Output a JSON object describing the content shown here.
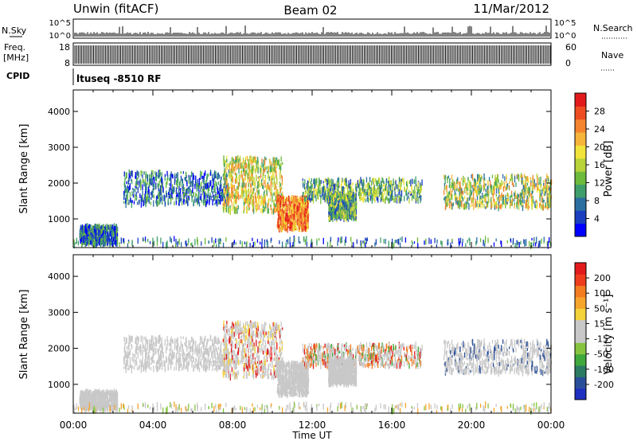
{
  "header": {
    "station": "Unwin (fitACF)",
    "beam": "Beam 02",
    "date": "11/Mar/2012"
  },
  "strips": {
    "nsky_label": "N.Sky",
    "nsky_ticks": [
      "10^5",
      "10^0"
    ],
    "nsearch_label": "N.Search",
    "nsearch_ticks": [
      "10^5",
      "10^0"
    ],
    "freq_label_1": "Freq.",
    "freq_label_2": "[MHz]",
    "freq_ticks": [
      "18",
      "8"
    ],
    "nave_label": "Nave",
    "nave_ticks": [
      "60",
      "0"
    ],
    "cpid_label": "CPID",
    "cpid_value": "ltuseq -8510 RF"
  },
  "chart_data": [
    {
      "type": "heatmap",
      "name": "power",
      "ylabel": "Slant Range [km]",
      "yticks": [
        1000,
        2000,
        3000,
        4000
      ],
      "ylim": [
        200,
        4600
      ],
      "xlim_hours": [
        0,
        24
      ],
      "colorbar": {
        "label": "Power [dB]",
        "ticks": [
          "28",
          "24",
          "20",
          "16",
          "12",
          "8",
          "4"
        ],
        "colors": [
          "#0000ff",
          "#1a3fbf",
          "#2b6fa0",
          "#3f9f6a",
          "#6dbb3c",
          "#b8d23a",
          "#f2e33a",
          "#f6b43a",
          "#f4852e",
          "#ee4d22",
          "#e31a1c"
        ]
      },
      "scatter_groups": [
        {
          "range_km": [
            300,
            800
          ],
          "hours": [
            0.3,
            2.2
          ]
        },
        {
          "range_km": [
            1400,
            2300
          ],
          "hours": [
            2.5,
            7.8
          ]
        },
        {
          "range_km": [
            1200,
            2700
          ],
          "hours": [
            7.5,
            10.5
          ]
        },
        {
          "range_km": [
            700,
            1600
          ],
          "hours": [
            10.2,
            11.8
          ]
        },
        {
          "range_km": [
            1500,
            2100
          ],
          "hours": [
            11.5,
            17.5
          ]
        },
        {
          "range_km": [
            1000,
            1700
          ],
          "hours": [
            12.8,
            14.2
          ]
        },
        {
          "range_km": [
            1300,
            2200
          ],
          "hours": [
            18.6,
            24
          ]
        },
        {
          "range_km": [
            250,
            450
          ],
          "hours": [
            0,
            24
          ]
        }
      ]
    },
    {
      "type": "heatmap",
      "name": "velocity",
      "ylabel": "Slant Range [km]",
      "yticks": [
        1000,
        2000,
        3000,
        4000
      ],
      "ylim": [
        200,
        4600
      ],
      "xlim_hours": [
        0,
        24
      ],
      "colorbar": {
        "label": "Velocity [m s⁻¹]",
        "ticks": [
          "200",
          "100",
          "50",
          "15",
          "-15",
          "-50",
          "-100",
          "-200"
        ],
        "colors": [
          "#e31a1c",
          "#ee3d1c",
          "#f47c20",
          "#f6a52c",
          "#f3d23a",
          "#c8c8c8",
          "#c8c8c8",
          "#86c440",
          "#3fa93c",
          "#2a7b62",
          "#2a4f9a",
          "#1f2fc0"
        ]
      }
    }
  ],
  "xaxis": {
    "label": "Time UT",
    "ticks": [
      "00:00",
      "04:00",
      "08:00",
      "12:00",
      "16:00",
      "20:00",
      "00:00"
    ]
  }
}
